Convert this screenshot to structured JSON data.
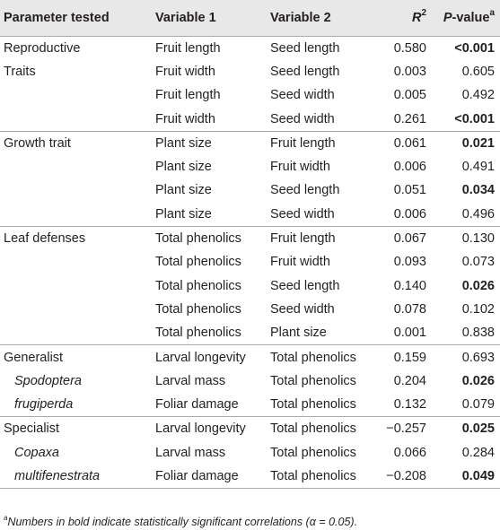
{
  "header": {
    "col1": "Parameter tested",
    "col2": "Variable 1",
    "col3": "Variable 2",
    "col4_main": "R",
    "col4_sup": "2",
    "col5_main": "P",
    "col5_rest": "-value",
    "col5_sup": "a"
  },
  "rows": [
    {
      "param": "Reproductive",
      "v1": "Fruit length",
      "v2": "Seed length",
      "r2": "0.580",
      "p": "<0.001"
    },
    {
      "param": "Traits",
      "v1": "Fruit width",
      "v2": "Seed length",
      "r2": "0.003",
      "p": "0.605"
    },
    {
      "param": "",
      "v1": "Fruit length",
      "v2": "Seed width",
      "r2": "0.005",
      "p": "0.492"
    },
    {
      "param": "",
      "v1": "Fruit width",
      "v2": "Seed width",
      "r2": "0.261",
      "p": "<0.001"
    },
    {
      "param": "Growth trait",
      "v1": "Plant size",
      "v2": "Fruit length",
      "r2": "0.061",
      "p": "0.021"
    },
    {
      "param": "",
      "v1": "Plant size",
      "v2": "Fruit width",
      "r2": "0.006",
      "p": "0.491"
    },
    {
      "param": "",
      "v1": "Plant size",
      "v2": "Seed length",
      "r2": "0.051",
      "p": "0.034"
    },
    {
      "param": "",
      "v1": "Plant size",
      "v2": "Seed width",
      "r2": "0.006",
      "p": "0.496"
    },
    {
      "param": "Leaf defenses",
      "v1": "Total phenolics",
      "v2": "Fruit length",
      "r2": "0.067",
      "p": "0.130"
    },
    {
      "param": "",
      "v1": "Total phenolics",
      "v2": "Fruit width",
      "r2": "0.093",
      "p": "0.073"
    },
    {
      "param": "",
      "v1": "Total phenolics",
      "v2": "Seed length",
      "r2": "0.140",
      "p": "0.026"
    },
    {
      "param": "",
      "v1": "Total phenolics",
      "v2": "Seed width",
      "r2": "0.078",
      "p": "0.102"
    },
    {
      "param": "",
      "v1": "Total phenolics",
      "v2": "Plant size",
      "r2": "0.001",
      "p": "0.838"
    },
    {
      "param": "Generalist",
      "v1": "Larval longevity",
      "v2": "Total phenolics",
      "r2": "0.159",
      "p": "0.693"
    },
    {
      "param": "Spodoptera",
      "v1": "Larval mass",
      "v2": "Total phenolics",
      "r2": "0.204",
      "p": "0.026"
    },
    {
      "param": "frugiperda",
      "v1": "Foliar damage",
      "v2": "Total phenolics",
      "r2": "0.132",
      "p": "0.079"
    },
    {
      "param": "Specialist",
      "v1": "Larval longevity",
      "v2": "Total phenolics",
      "r2": "−0.257",
      "p": "0.025"
    },
    {
      "param": "Copaxa",
      "v1": "Larval mass",
      "v2": "Total phenolics",
      "r2": "0.066",
      "p": "0.284"
    },
    {
      "param": "multifenestrata",
      "v1": "Foliar damage",
      "v2": "Total phenolics",
      "r2": "−0.208",
      "p": "0.049"
    }
  ],
  "footnote": {
    "sup": "a",
    "text": "Numbers in bold indicate statistically significant correlations (α = 0.05)."
  }
}
